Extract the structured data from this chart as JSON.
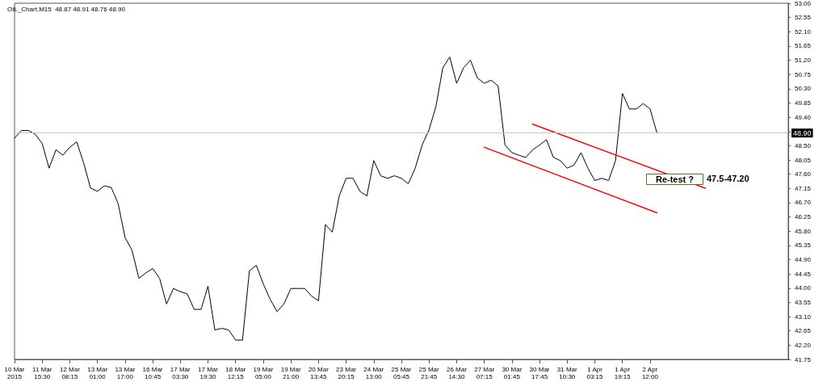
{
  "chart_data": {
    "type": "line",
    "title": "OIL_Chart,M15  48.87 48.91 48.76 48.90",
    "categories": [
      "10 Mar 2015",
      null,
      null,
      null,
      "11 Mar 15:30",
      null,
      null,
      null,
      "12 Mar 08:15",
      null,
      null,
      null,
      "13 Mar 01:00",
      null,
      null,
      null,
      "13 Mar 17:00",
      null,
      null,
      null,
      "16 Mar 10:45",
      null,
      null,
      null,
      "17 Mar 03:30",
      null,
      null,
      null,
      "17 Mar 19:30",
      null,
      null,
      null,
      "18 Mar 12:15",
      null,
      null,
      null,
      "19 Mar 05:00",
      null,
      null,
      null,
      "19 Mar 21:00",
      null,
      null,
      null,
      "20 Mar 13:45",
      null,
      null,
      null,
      "23 Mar 20:15",
      null,
      null,
      null,
      "24 Mar 13:00",
      null,
      null,
      null,
      "25 Mar 05:45",
      null,
      null,
      null,
      "25 Mar 21:45",
      null,
      null,
      null,
      "26 Mar 14:30",
      null,
      null,
      null,
      "27 Mar 07:15",
      null,
      null,
      null,
      "30 Mar 01:45",
      null,
      null,
      null,
      "30 Mar 17:45",
      null,
      null,
      null,
      "31 Mar 10:30",
      null,
      null,
      null,
      "1 Apr 03:15",
      null,
      null,
      null,
      "1 Apr 19:15",
      null,
      null,
      null,
      "2 Apr 12:00",
      null,
      null,
      null,
      null,
      null,
      null,
      null,
      null,
      null,
      null,
      null,
      null,
      null,
      null,
      null,
      null,
      null,
      null,
      null,
      null
    ],
    "series": [
      {
        "color": "#000000",
        "values": [
          48.74,
          48.98,
          48.98,
          48.86,
          48.57,
          47.79,
          48.37,
          48.2,
          48.45,
          48.62,
          47.96,
          47.16,
          47.06,
          47.23,
          47.18,
          46.67,
          45.6,
          45.2,
          44.31,
          44.48,
          44.62,
          44.31,
          43.5,
          43.99,
          43.89,
          43.82,
          43.33,
          43.33,
          44.06,
          42.68,
          42.73,
          42.68,
          42.36,
          42.36,
          44.55,
          44.72,
          44.14,
          43.65,
          43.26,
          43.5,
          43.99,
          43.99,
          43.99,
          43.75,
          43.6,
          46.01,
          45.77,
          46.91,
          47.47,
          47.47,
          47.06,
          46.91,
          48.03,
          47.55,
          47.47,
          47.55,
          47.47,
          47.3,
          47.79,
          48.52,
          49.0,
          49.74,
          50.96,
          51.3,
          50.47,
          50.96,
          51.2,
          50.64,
          50.47,
          50.57,
          50.39,
          48.52,
          48.28,
          48.2,
          48.13,
          48.37,
          48.52,
          48.69,
          48.13,
          48.03,
          47.79,
          47.89,
          48.28,
          47.79,
          47.4,
          47.47,
          47.4,
          48.03,
          50.15,
          49.66,
          49.66,
          49.83,
          49.66,
          48.9,
          null,
          null,
          null,
          null,
          null,
          null,
          null,
          null,
          null,
          null,
          null,
          null,
          null,
          null,
          null,
          null,
          null,
          null,
          null
        ]
      },
      {
        "color": "#ff0000",
        "values": [
          null,
          null,
          null,
          null,
          null,
          null,
          null,
          null,
          null,
          null,
          null,
          null,
          null,
          null,
          null,
          null,
          null,
          null,
          null,
          null,
          null,
          null,
          null,
          null,
          null,
          null,
          null,
          null,
          null,
          null,
          null,
          null,
          null,
          null,
          null,
          null,
          null,
          null,
          null,
          null,
          null,
          null,
          null,
          null,
          null,
          null,
          null,
          null,
          null,
          null,
          null,
          null,
          null,
          null,
          null,
          null,
          null,
          null,
          null,
          null,
          null,
          null,
          null,
          null,
          null,
          null,
          null,
          null,
          null,
          null,
          null,
          null,
          null,
          null,
          null,
          49.18,
          null,
          null,
          null,
          null,
          null,
          null,
          null,
          null,
          null,
          null,
          null,
          null,
          null,
          null,
          null,
          null,
          null,
          null,
          null,
          null,
          null,
          null,
          null,
          null,
          47.16,
          null,
          null,
          null,
          null,
          null,
          null,
          null,
          null,
          null,
          null,
          null,
          null
        ]
      },
      {
        "color": "#ff0000",
        "values": [
          null,
          null,
          null,
          null,
          null,
          null,
          null,
          null,
          null,
          null,
          null,
          null,
          null,
          null,
          null,
          null,
          null,
          null,
          null,
          null,
          null,
          null,
          null,
          null,
          null,
          null,
          null,
          null,
          null,
          null,
          null,
          null,
          null,
          null,
          null,
          null,
          null,
          null,
          null,
          null,
          null,
          null,
          null,
          null,
          null,
          null,
          null,
          null,
          null,
          null,
          null,
          null,
          null,
          null,
          null,
          null,
          null,
          null,
          null,
          null,
          null,
          null,
          null,
          null,
          null,
          null,
          null,
          null,
          48.45,
          null,
          null,
          null,
          null,
          null,
          null,
          null,
          null,
          null,
          null,
          null,
          null,
          null,
          null,
          null,
          null,
          null,
          null,
          null,
          null,
          null,
          null,
          null,
          null,
          46.38,
          null,
          null,
          null,
          null,
          null,
          null,
          null,
          null,
          null,
          null,
          null,
          null,
          null,
          null,
          null,
          null,
          null,
          null,
          null
        ]
      }
    ],
    "ylim": [
      41.75,
      53.0
    ],
    "yticks": [
      {
        "value": 53.0,
        "label": "53.00"
      },
      {
        "value": 52.55,
        "label": "52.55"
      },
      {
        "value": 52.1,
        "label": "52.10"
      },
      {
        "value": 51.65,
        "label": "51.65"
      },
      {
        "value": 51.2,
        "label": "51.20"
      },
      {
        "value": 50.75,
        "label": "50.75"
      },
      {
        "value": 50.3,
        "label": "50.30"
      },
      {
        "value": 49.85,
        "label": "49.85"
      },
      {
        "value": 49.4,
        "label": "49.40"
      },
      {
        "value": 48.95,
        "label": null
      },
      {
        "value": 48.5,
        "label": "48.50"
      },
      {
        "value": 48.05,
        "label": "48.05"
      },
      {
        "value": 47.6,
        "label": "47.60"
      },
      {
        "value": 47.15,
        "label": "47.15"
      },
      {
        "value": 46.7,
        "label": "46.70"
      },
      {
        "value": 46.25,
        "label": "46.25"
      },
      {
        "value": 45.8,
        "label": "45.80"
      },
      {
        "value": 45.35,
        "label": "45.35"
      },
      {
        "value": 44.9,
        "label": "44.90"
      },
      {
        "value": 44.45,
        "label": "44.45"
      },
      {
        "value": 44.0,
        "label": "44.00"
      },
      {
        "value": 43.55,
        "label": "43.55"
      },
      {
        "value": 43.1,
        "label": "43.10"
      },
      {
        "value": 42.65,
        "label": "42.65"
      },
      {
        "value": 42.2,
        "label": "42.20"
      },
      {
        "value": 41.75,
        "label": "41.75"
      }
    ],
    "ref_lines": [
      {
        "axis": "y",
        "value": 48.9,
        "label": "48.90",
        "color": "#c8c8c8"
      }
    ],
    "annotations": [
      "Re-test ?",
      "47.5-47.20"
    ],
    "marker": "none",
    "line_style": "solid",
    "grid": false
  }
}
